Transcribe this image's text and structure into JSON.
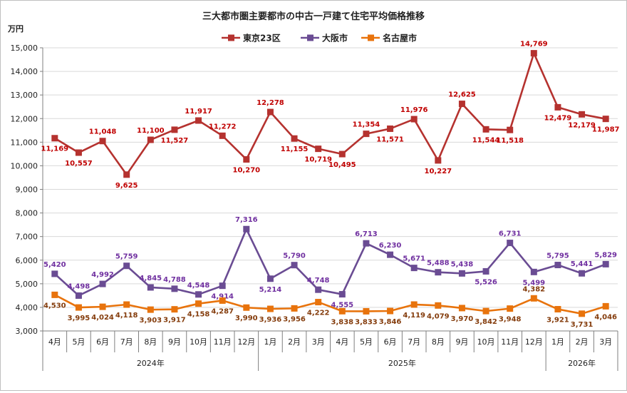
{
  "chart_data": {
    "type": "line",
    "title": "三大都市圏主要都市の中古一戸建て住宅平均価格推移",
    "unit_label": "万円",
    "ylim": [
      3000,
      15000
    ],
    "yticks": [
      3000,
      4000,
      5000,
      6000,
      7000,
      8000,
      9000,
      10000,
      11000,
      12000,
      13000,
      14000,
      15000
    ],
    "ytick_labels": [
      "3,000",
      "4,000",
      "5,000",
      "6,000",
      "7,000",
      "8,000",
      "9,000",
      "10,000",
      "11,000",
      "12,000",
      "13,000",
      "14,000",
      "15,000"
    ],
    "categories": [
      "4月",
      "5月",
      "6月",
      "7月",
      "8月",
      "9月",
      "10月",
      "11月",
      "12月",
      "1月",
      "2月",
      "3月",
      "4月",
      "5月",
      "6月",
      "7月",
      "8月",
      "9月",
      "10月",
      "11月",
      "12月",
      "1月",
      "2月",
      "3月"
    ],
    "year_groups": [
      {
        "label": "2024年",
        "start": 0,
        "end": 8
      },
      {
        "label": "2025年",
        "start": 9,
        "end": 20
      },
      {
        "label": "2026年",
        "start": 21,
        "end": 23
      }
    ],
    "grid": true,
    "legend_position": "top-center",
    "series": [
      {
        "name": "東京23区",
        "color": "#b5322f",
        "label_color": "#c00000",
        "values": [
          11169,
          10557,
          11048,
          9625,
          11100,
          11527,
          11917,
          11272,
          10270,
          12278,
          11155,
          10719,
          10495,
          11354,
          11571,
          11976,
          10227,
          12625,
          11544,
          11518,
          14769,
          12479,
          12179,
          11987
        ],
        "labels": [
          "11,169",
          "10,557",
          "11,048",
          "9,625",
          "11,100",
          "11,527",
          "11,917",
          "11,272",
          "10,270",
          "12,278",
          "11,155",
          "10,719",
          "10,495",
          "11,354",
          "11,571",
          "11,976",
          "10,227",
          "12,625",
          "11,544",
          "11,518",
          "14,769",
          "12,479",
          "12,179",
          "11,987"
        ]
      },
      {
        "name": "大阪市",
        "color": "#6a4c93",
        "label_color": "#7030a0",
        "values": [
          5420,
          4498,
          4992,
          5759,
          4845,
          4788,
          4548,
          4914,
          7316,
          5214,
          5790,
          4748,
          4555,
          6713,
          6230,
          5671,
          5488,
          5438,
          5526,
          6731,
          5499,
          5795,
          5441,
          5829
        ],
        "labels": [
          "5,420",
          "4,498",
          "4,992",
          "5,759",
          "4,845",
          "4,788",
          "4,548",
          "4,914",
          "7,316",
          "5,214",
          "5,790",
          "4,748",
          "4,555",
          "6,713",
          "6,230",
          "5,671",
          "5,488",
          "5,438",
          "5,526",
          "6,731",
          "5,499",
          "5,795",
          "5,441",
          "5,829"
        ]
      },
      {
        "name": "名古屋市",
        "color": "#e8730c",
        "label_color": "#843c0c",
        "values": [
          4530,
          3995,
          4024,
          4118,
          3903,
          3917,
          4158,
          4287,
          3990,
          3936,
          3956,
          4222,
          3838,
          3833,
          3846,
          4119,
          4079,
          3970,
          3842,
          3948,
          4382,
          3921,
          3731,
          4046
        ],
        "labels": [
          "4,530",
          "3,995",
          "4,024",
          "4,118",
          "3,903",
          "3,917",
          "4,158",
          "4,287",
          "3,990",
          "3,936",
          "3,956",
          "4,222",
          "3,838",
          "3,833",
          "3,846",
          "4,119",
          "4,079",
          "3,970",
          "3,842",
          "3,948",
          "4,382",
          "3,921",
          "3,731",
          "4,046"
        ]
      }
    ]
  }
}
